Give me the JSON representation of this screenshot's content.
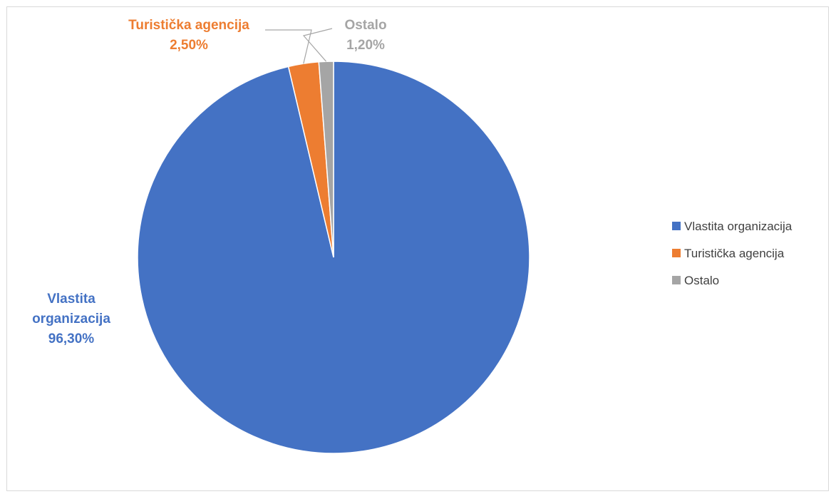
{
  "chart_data": {
    "type": "pie",
    "title": "",
    "categories": [
      "Vlastita organizacija",
      "Turistička agencija",
      "Ostalo"
    ],
    "values": [
      96.3,
      2.5,
      1.2
    ],
    "value_labels": [
      "96,30%",
      "2,50%",
      "1,20%"
    ],
    "colors": [
      "#4472C4",
      "#ED7D31",
      "#A5A5A5"
    ],
    "legend": {
      "position": "right",
      "entries": [
        "Vlastita organizacija",
        "Turistička agencija",
        "Ostalo"
      ]
    },
    "data_labels": [
      {
        "lines": [
          "Vlastita",
          "organizacija"
        ],
        "value": "96,30%"
      },
      {
        "lines": [
          "Turistička agencija"
        ],
        "value": "2,50%"
      },
      {
        "lines": [
          "Ostalo"
        ],
        "value": "1,20%"
      }
    ]
  }
}
